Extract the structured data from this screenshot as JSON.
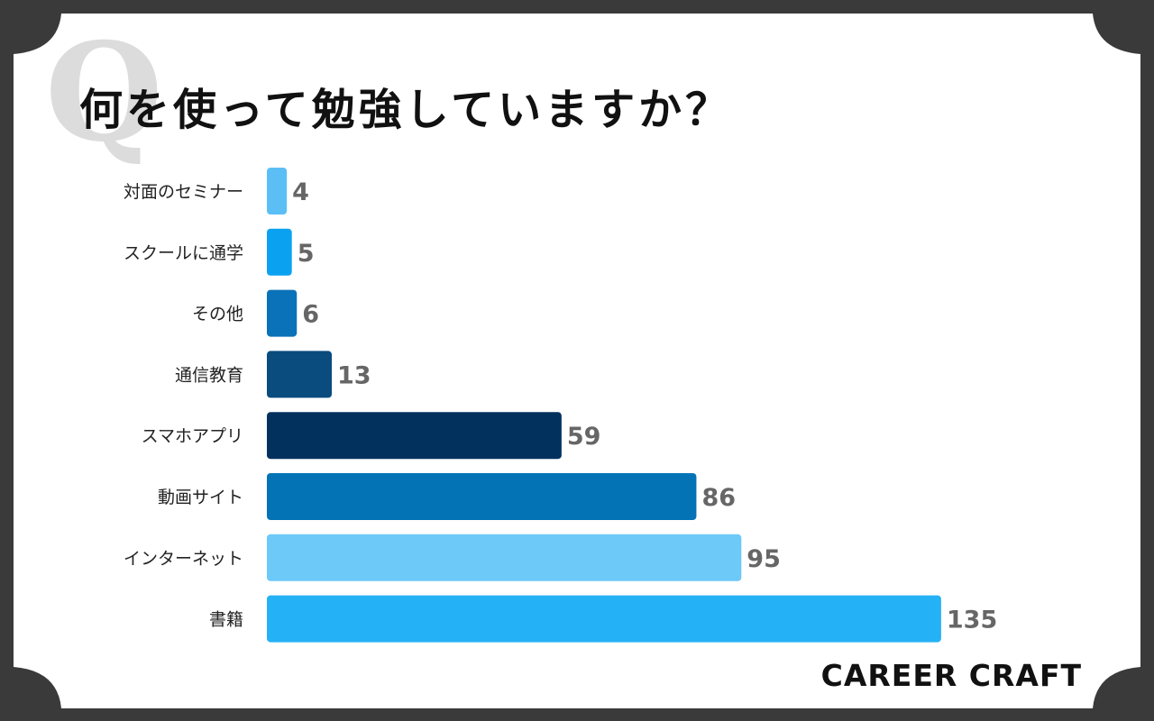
{
  "title": "何を使って勉強していますか？",
  "q_mark": "Q",
  "brand": "CAREER CRAFT",
  "chart_data": {
    "type": "bar",
    "orientation": "horizontal",
    "categories": [
      "対面のセミナー",
      "スクールに通学",
      "その他",
      "通信教育",
      "スマホアプリ",
      "動画サイト",
      "インターネット",
      "書籍"
    ],
    "values": [
      4,
      5,
      6,
      13,
      59,
      86,
      95,
      135
    ],
    "colors": [
      "#5bbff5",
      "#0aa2f0",
      "#0a72b8",
      "#0a4c7e",
      "#02315e",
      "#0373b6",
      "#6cc9f8",
      "#25b1f5"
    ],
    "grid": false,
    "legend": "none"
  }
}
